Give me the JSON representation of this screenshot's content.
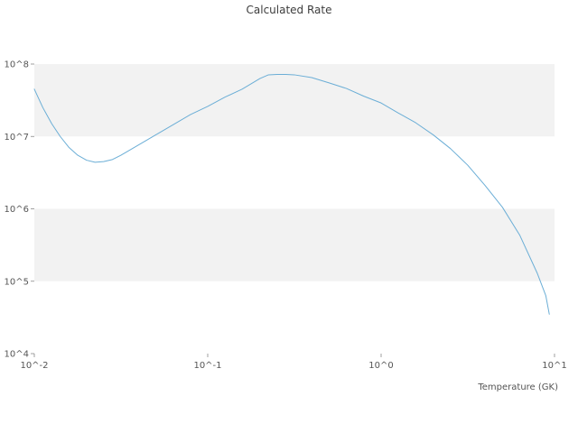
{
  "chart": {
    "title": "Calculated Rate",
    "xlabel": "Temperature (GK)",
    "x_tick_labels": [
      "10^-2",
      "10^-1",
      "10^0",
      "10^1"
    ],
    "y_tick_labels": [
      "10^4",
      "10^5",
      "10^6",
      "10^7",
      "10^8"
    ]
  },
  "chart_data": {
    "type": "line",
    "title": "Calculated Rate",
    "xlabel": "Temperature (GK)",
    "ylabel": "",
    "x_scale": "log",
    "y_scale": "log",
    "xlim": [
      0.01,
      10
    ],
    "ylim": [
      10000,
      100000000
    ],
    "x_tick_values": [
      0.01,
      0.1,
      1,
      10
    ],
    "y_tick_values": [
      10000,
      100000,
      1000000,
      10000000,
      100000000
    ],
    "grid": "horizontal-bands",
    "legend": "none",
    "line_color": "#6baed6",
    "band_color": "#f2f2f2",
    "series_name": "Calculated Rate",
    "x": [
      0.01,
      0.0112,
      0.0126,
      0.0141,
      0.0158,
      0.0178,
      0.02,
      0.0224,
      0.0251,
      0.0282,
      0.0316,
      0.0398,
      0.0501,
      0.0631,
      0.0794,
      0.1,
      0.126,
      0.158,
      0.2,
      0.224,
      0.251,
      0.282,
      0.316,
      0.398,
      0.501,
      0.631,
      0.794,
      1.0,
      1.26,
      1.58,
      2.0,
      2.51,
      3.16,
      3.98,
      5.01,
      6.31,
      7.94,
      8.91,
      9.33
    ],
    "y": [
      45000000,
      25000000,
      15000000,
      10000000,
      7100000,
      5500000,
      4700000,
      4400000,
      4500000,
      4800000,
      5500000,
      7600000,
      10500000,
      14500000,
      20000000,
      26000000,
      35000000,
      45000000,
      63000000,
      71000000,
      72000000,
      72000000,
      71000000,
      65000000,
      55000000,
      46000000,
      36000000,
      29000000,
      21000000,
      15500000,
      10500000,
      6800000,
      4000000,
      2100000,
      1050000,
      430000,
      130000,
      63000,
      35000
    ]
  }
}
